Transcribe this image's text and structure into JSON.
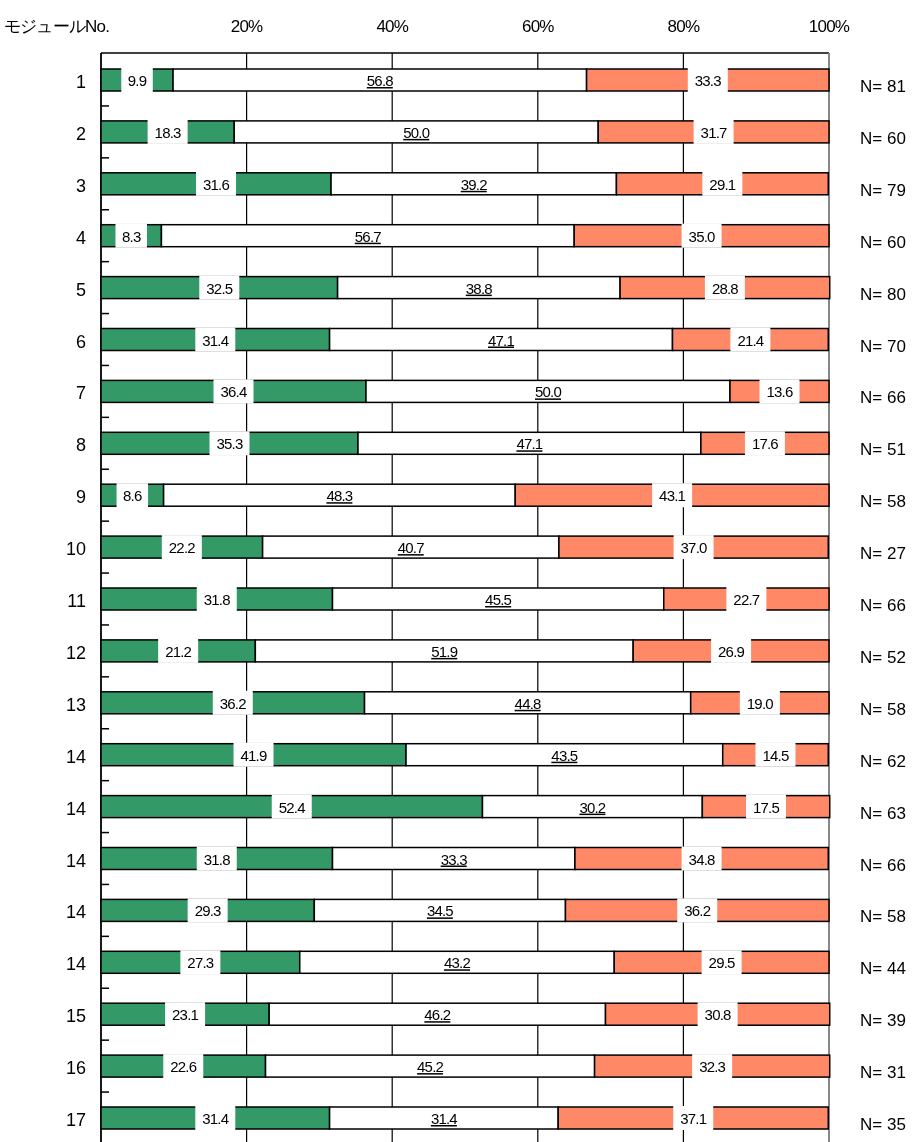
{
  "chart_data": {
    "type": "bar",
    "orientation": "horizontal",
    "stacked": true,
    "ylabel": "モジュールNo.",
    "categories": [
      "1",
      "2",
      "3",
      "4",
      "5",
      "6",
      "7",
      "8",
      "9",
      "10",
      "11",
      "12",
      "13",
      "14",
      "14",
      "14",
      "14",
      "14",
      "15",
      "16",
      "17"
    ],
    "series": [
      {
        "color": "#339966",
        "values": [
          9.9,
          18.3,
          31.6,
          8.3,
          32.5,
          31.4,
          36.4,
          35.3,
          8.6,
          22.2,
          31.8,
          21.2,
          36.2,
          41.9,
          52.4,
          31.8,
          29.3,
          27.3,
          23.1,
          22.6,
          31.4
        ],
        "value_labels": [
          "9.9",
          "18.3",
          "31.6",
          "8.3",
          "32.5",
          "31.4",
          "36.4",
          "35.3",
          "8.6",
          "22.2",
          "31.8",
          "21.2",
          "36.2",
          "41.9",
          "52.4",
          "31.8",
          "29.3",
          "27.3",
          "23.1",
          "22.6",
          "31.4"
        ]
      },
      {
        "color": "#ffffff",
        "values": [
          56.8,
          50.0,
          39.2,
          56.7,
          38.8,
          47.1,
          50.0,
          47.1,
          48.3,
          40.7,
          45.5,
          51.9,
          44.8,
          43.5,
          30.2,
          33.3,
          34.5,
          43.2,
          46.2,
          45.2,
          31.4
        ],
        "value_labels": [
          "56.8",
          "50.0",
          "39.2",
          "56.7",
          "38.8",
          "47.1",
          "50.0",
          "47.1",
          "48.3",
          "40.7",
          "45.5",
          "51.9",
          "44.8",
          "43.5",
          "30.2",
          "33.3",
          "34.5",
          "43.2",
          "46.2",
          "45.2",
          "31.4"
        ]
      },
      {
        "color": "#ff8866",
        "values": [
          33.3,
          31.7,
          29.1,
          35.0,
          28.8,
          21.4,
          13.6,
          17.6,
          43.1,
          37.0,
          22.7,
          26.9,
          19.0,
          14.5,
          17.5,
          34.8,
          36.2,
          29.5,
          30.8,
          32.3,
          37.1
        ],
        "value_labels": [
          "33.3",
          "31.7",
          "29.1",
          "35.0",
          "28.8",
          "21.4",
          "13.6",
          "17.6",
          "43.1",
          "37.0",
          "22.7",
          "26.9",
          "19.0",
          "14.5",
          "17.5",
          "34.8",
          "36.2",
          "29.5",
          "30.8",
          "32.3",
          "37.1"
        ]
      }
    ],
    "xlim": [
      0,
      100
    ],
    "xticks": [
      {
        "value": 0,
        "label": null
      },
      {
        "value": 20,
        "label": "20%"
      },
      {
        "value": 40,
        "label": "40%"
      },
      {
        "value": 60,
        "label": "60%"
      },
      {
        "value": 80,
        "label": "80%"
      },
      {
        "value": 100,
        "label": "100%"
      }
    ],
    "grid": "x",
    "annotations": [
      "N= 81",
      "N= 60",
      "N= 79",
      "N= 60",
      "N= 80",
      "N= 70",
      "N= 66",
      "N= 51",
      "N= 58",
      "N= 27",
      "N= 66",
      "N= 52",
      "N= 58",
      "N= 62",
      "N= 63",
      "N= 66",
      "N= 58",
      "N= 44",
      "N= 39",
      "N= 31",
      "N= 35"
    ]
  }
}
